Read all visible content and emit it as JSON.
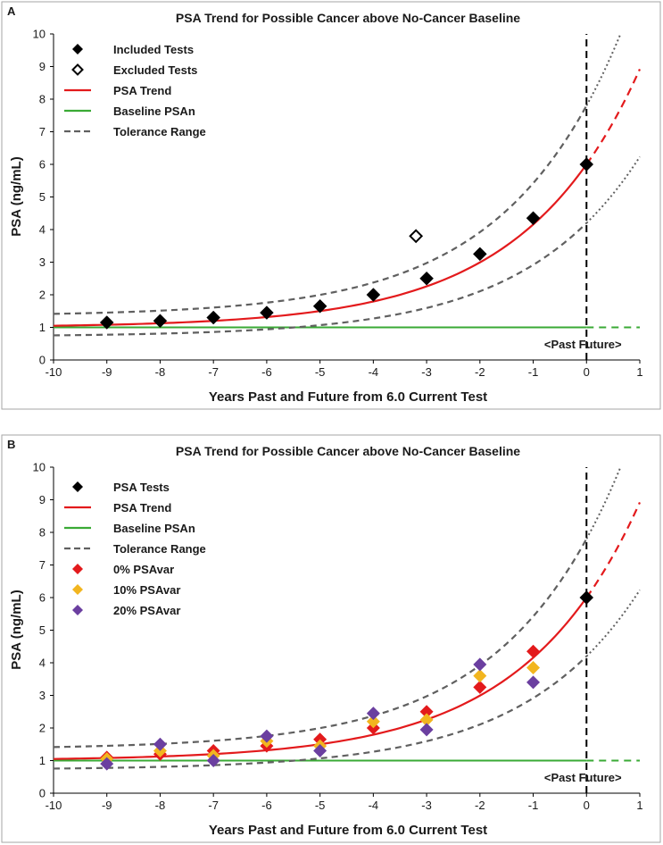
{
  "chart_data": [
    {
      "panel": "A",
      "type": "scatter",
      "title": "PSA Trend for Possible Cancer above No-Cancer Baseline",
      "xlabel": "Years Past and Future from 6.0 Current Test",
      "ylabel": "PSA (ng/mL)",
      "xlim": [
        -10,
        1
      ],
      "ylim": [
        0,
        10
      ],
      "x_ticks": [
        "-10",
        "-9",
        "-8",
        "-7",
        "-6",
        "-5",
        "-4",
        "-3",
        "-2",
        "-1",
        "0",
        "1"
      ],
      "y_ticks": [
        "0",
        "1",
        "2",
        "3",
        "4",
        "5",
        "6",
        "7",
        "8",
        "9",
        "10"
      ],
      "legend": [
        "Included Tests",
        "Excluded Tests",
        "PSA Trend",
        "Baseline PSAn",
        "Tolerance Range"
      ],
      "past_future_label": "<Past  Future>",
      "trend": {
        "baseline": 1.0,
        "current": 6.0,
        "rate": 0.46
      },
      "tolerance": {
        "upper_offset": 1.8,
        "lower_offset": -1.8,
        "upper_base": 1.35,
        "lower_base": 0.72
      },
      "series": [
        {
          "name": "Included Tests",
          "marker": "diamond-filled",
          "color": "#000000",
          "x": [
            -9,
            -8,
            -7,
            -6,
            -5,
            -4,
            -3,
            -2,
            -1,
            0
          ],
          "y": [
            1.15,
            1.2,
            1.3,
            1.45,
            1.65,
            2.0,
            2.5,
            3.25,
            4.35,
            6.0
          ]
        },
        {
          "name": "Excluded Tests",
          "marker": "diamond-open",
          "color": "#000000",
          "x": [
            -3.2
          ],
          "y": [
            3.8
          ]
        }
      ]
    },
    {
      "panel": "B",
      "type": "scatter",
      "title": "PSA Trend for Possible Cancer above No-Cancer Baseline",
      "xlabel": "Years Past and Future from 6.0 Current Test",
      "ylabel": "PSA (ng/mL)",
      "xlim": [
        -10,
        1
      ],
      "ylim": [
        0,
        10
      ],
      "x_ticks": [
        "-10",
        "-9",
        "-8",
        "-7",
        "-6",
        "-5",
        "-4",
        "-3",
        "-2",
        "-1",
        "0",
        "1"
      ],
      "y_ticks": [
        "0",
        "1",
        "2",
        "3",
        "4",
        "5",
        "6",
        "7",
        "8",
        "9",
        "10"
      ],
      "legend": [
        "PSA Tests",
        "PSA Trend",
        "Baseline PSAn",
        "Tolerance Range",
        "0% PSAvar",
        "10% PSAvar",
        "20% PSAvar"
      ],
      "past_future_label": "<Past  Future>",
      "trend": {
        "baseline": 1.0,
        "current": 6.0,
        "rate": 0.46
      },
      "tolerance": {
        "upper_offset": 1.8,
        "lower_offset": -1.8,
        "upper_base": 1.35,
        "lower_base": 0.72
      },
      "series": [
        {
          "name": "PSA Tests",
          "marker": "diamond-filled",
          "color": "#000000",
          "x": [
            0
          ],
          "y": [
            6.0
          ]
        },
        {
          "name": "0% PSAvar",
          "marker": "diamond-filled",
          "color": "#e31a1c",
          "x": [
            -9,
            -8,
            -7,
            -6,
            -5,
            -4,
            -3,
            -2,
            -1
          ],
          "y": [
            1.1,
            1.2,
            1.3,
            1.45,
            1.65,
            2.0,
            2.5,
            3.25,
            4.35
          ]
        },
        {
          "name": "10% PSAvar",
          "marker": "diamond-filled",
          "color": "#f2b51f",
          "x": [
            -9,
            -8,
            -7,
            -6,
            -5,
            -4,
            -3,
            -2,
            -1
          ],
          "y": [
            1.05,
            1.3,
            1.15,
            1.6,
            1.45,
            2.2,
            2.25,
            3.6,
            3.85
          ]
        },
        {
          "name": "20% PSAvar",
          "marker": "diamond-filled",
          "color": "#6b3fa0",
          "x": [
            -9,
            -8,
            -7,
            -6,
            -5,
            -4,
            -3,
            -2,
            -1
          ],
          "y": [
            0.9,
            1.5,
            1.0,
            1.75,
            1.3,
            2.45,
            1.95,
            3.95,
            3.4
          ]
        }
      ]
    }
  ],
  "colors": {
    "trend": "#e31a1c",
    "baseline": "#3aaa35",
    "tolerance": "#606060",
    "axis": "#000000",
    "frame": "#a6a6a6"
  }
}
